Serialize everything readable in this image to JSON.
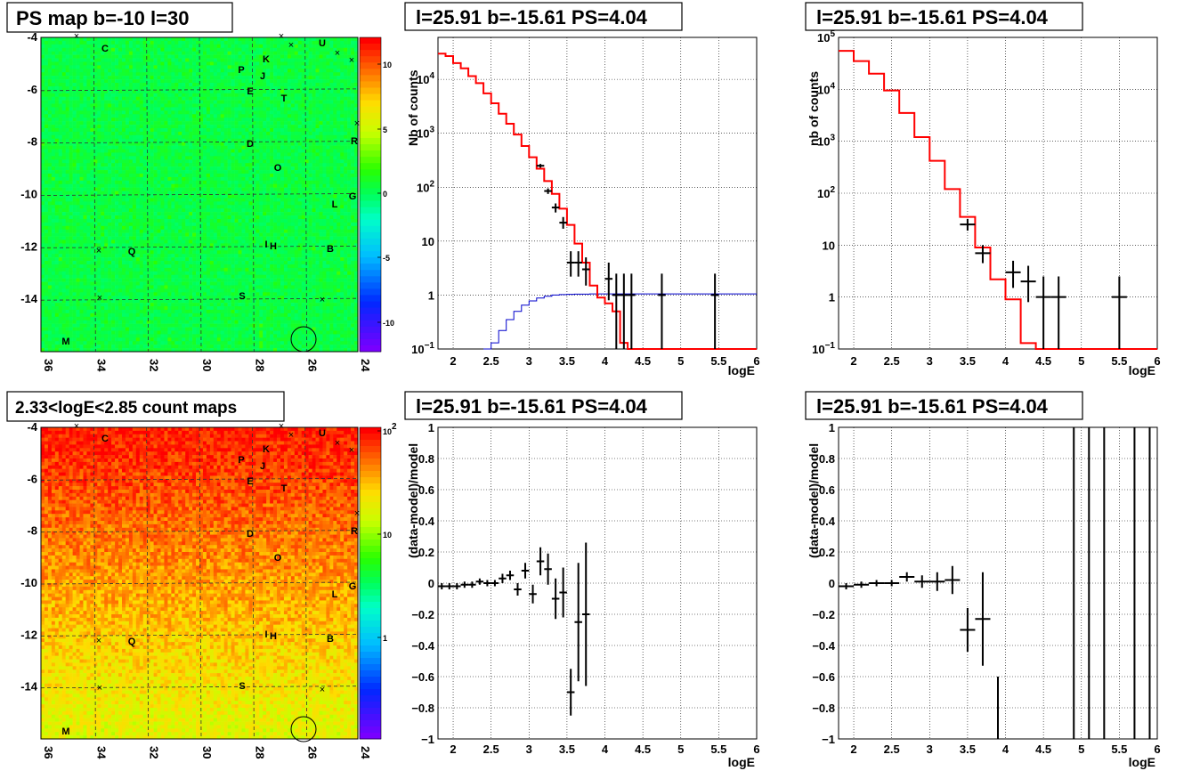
{
  "map_labels": [
    "C",
    "K",
    "P",
    "J",
    "E",
    "U",
    "T",
    "D",
    "R",
    "O",
    "G",
    "L",
    "I",
    "H",
    "B",
    "Q",
    "S",
    "M"
  ],
  "chart_data": [
    {
      "type": "heatmap",
      "title": "PS map b=-10 l=30",
      "x_ticks": [
        "36",
        "34",
        "32",
        "30",
        "28",
        "26",
        "24"
      ],
      "y_ticks": [
        "-4",
        "-6",
        "-8",
        "-10",
        "-12",
        "-14"
      ],
      "colorbar_ticks": [
        "10",
        "5",
        "0",
        "-5",
        "-10"
      ],
      "xlim": [
        36,
        24
      ],
      "ylim": [
        -16,
        -4
      ],
      "zlim": [
        -12,
        12
      ],
      "grid": true,
      "colormap": "rainbow"
    },
    {
      "type": "line",
      "title": "l=25.91 b=-15.61 PS=4.04",
      "xlabel": "logE",
      "ylabel": "Nb of counts",
      "log_y": true,
      "xlim": [
        1.8,
        6
      ],
      "ylim": [
        0.1,
        60000
      ],
      "x_ticks": [
        "2",
        "2.5",
        "3",
        "3.5",
        "4",
        "4.5",
        "5",
        "5.5",
        "6"
      ],
      "y_ticks": [
        "10^4",
        "10^3",
        "10^2",
        "10",
        "1",
        "10^-1"
      ],
      "grid": true,
      "model_color": "#ff0000",
      "ps_color": "#0000cc",
      "bin_width": 0.1,
      "model": [
        [
          1.8,
          30000
        ],
        [
          1.9,
          27000
        ],
        [
          2.0,
          20000
        ],
        [
          2.1,
          16000
        ],
        [
          2.2,
          11500
        ],
        [
          2.3,
          8500
        ],
        [
          2.4,
          5500
        ],
        [
          2.5,
          3600
        ],
        [
          2.6,
          2300
        ],
        [
          2.7,
          1500
        ],
        [
          2.8,
          950
        ],
        [
          2.9,
          580
        ],
        [
          3.0,
          360
        ],
        [
          3.1,
          220
        ],
        [
          3.2,
          130
        ],
        [
          3.3,
          75
        ],
        [
          3.4,
          40
        ],
        [
          3.5,
          20
        ],
        [
          3.6,
          9
        ],
        [
          3.7,
          4
        ],
        [
          3.8,
          1.5
        ],
        [
          3.9,
          0.9
        ],
        [
          4.0,
          0.7
        ],
        [
          4.1,
          0.5
        ],
        [
          4.2,
          0.13
        ],
        [
          4.3,
          0.1
        ],
        [
          4.4,
          0.1
        ],
        [
          4.5,
          0.1
        ],
        [
          4.6,
          0.1
        ],
        [
          4.7,
          0.1
        ],
        [
          4.8,
          0.1
        ],
        [
          4.9,
          0.1
        ],
        [
          5.0,
          0.1
        ],
        [
          5.1,
          0.1
        ],
        [
          5.2,
          0.1
        ],
        [
          5.3,
          0.1
        ],
        [
          5.4,
          0.1
        ],
        [
          5.5,
          0.1
        ],
        [
          5.6,
          0.1
        ],
        [
          5.7,
          0.1
        ],
        [
          5.8,
          0.1
        ],
        [
          5.9,
          0.1
        ]
      ],
      "ps_model": [
        [
          2.4,
          0.1
        ],
        [
          2.5,
          0.13
        ],
        [
          2.6,
          0.22
        ],
        [
          2.7,
          0.35
        ],
        [
          2.8,
          0.5
        ],
        [
          2.9,
          0.65
        ],
        [
          3.0,
          0.78
        ],
        [
          3.1,
          0.88
        ],
        [
          3.2,
          0.95
        ],
        [
          3.3,
          1.0
        ],
        [
          3.4,
          1.02
        ],
        [
          3.5,
          1.03
        ],
        [
          3.6,
          1.04
        ],
        [
          3.7,
          1.04
        ],
        [
          3.8,
          1.05
        ],
        [
          3.9,
          1.05
        ],
        [
          4.0,
          1.05
        ],
        [
          4.1,
          1.05
        ],
        [
          4.2,
          1.05
        ],
        [
          4.3,
          1.05
        ],
        [
          4.4,
          1.05
        ],
        [
          4.5,
          1.05
        ],
        [
          4.6,
          1.05
        ],
        [
          4.7,
          1.05
        ],
        [
          4.8,
          1.05
        ],
        [
          4.9,
          1.05
        ],
        [
          5.0,
          1.05
        ],
        [
          5.1,
          1.05
        ],
        [
          5.2,
          1.05
        ],
        [
          5.3,
          1.05
        ],
        [
          5.4,
          1.05
        ],
        [
          5.5,
          1.05
        ],
        [
          5.6,
          1.05
        ],
        [
          5.7,
          1.05
        ],
        [
          5.8,
          1.05
        ],
        [
          5.9,
          1.05
        ]
      ],
      "data_points": [
        {
          "x": 3.15,
          "y": 250,
          "lo": 230,
          "hi": 270
        },
        {
          "x": 3.25,
          "y": 85,
          "lo": 75,
          "hi": 95
        },
        {
          "x": 3.35,
          "y": 42,
          "lo": 34,
          "hi": 50
        },
        {
          "x": 3.45,
          "y": 22,
          "lo": 17,
          "hi": 28
        },
        {
          "x": 3.55,
          "y": 4,
          "lo": 2.2,
          "hi": 6.5
        },
        {
          "x": 3.65,
          "y": 4,
          "lo": 2.2,
          "hi": 6.5
        },
        {
          "x": 3.75,
          "y": 3,
          "lo": 1.5,
          "hi": 5
        },
        {
          "x": 4.05,
          "y": 2,
          "lo": 0.8,
          "hi": 4
        },
        {
          "x": 4.15,
          "y": 1,
          "lo": 0.1,
          "hi": 2.5
        },
        {
          "x": 4.25,
          "y": 1,
          "lo": 0.1,
          "hi": 2.5
        },
        {
          "x": 4.35,
          "y": 1,
          "lo": 0.1,
          "hi": 2.5
        },
        {
          "x": 4.75,
          "y": 1,
          "lo": 0.1,
          "hi": 2.5
        },
        {
          "x": 5.45,
          "y": 1,
          "lo": 0.1,
          "hi": 2.5
        }
      ]
    },
    {
      "type": "line",
      "title": "l=25.91 b=-15.61 PS=4.04",
      "xlabel": "logE",
      "ylabel": "nb of counts",
      "log_y": true,
      "xlim": [
        1.8,
        6
      ],
      "ylim": [
        0.1,
        100000
      ],
      "x_ticks": [
        "2",
        "2.5",
        "3",
        "3.5",
        "4",
        "4.5",
        "5",
        "5.5",
        "6"
      ],
      "y_ticks": [
        "10^5",
        "10^4",
        "10^3",
        "10^2",
        "10",
        "1",
        "10^-1"
      ],
      "grid": true,
      "model_color": "#ff0000",
      "bin_width": 0.2,
      "model": [
        [
          1.8,
          55000
        ],
        [
          2.0,
          35000
        ],
        [
          2.2,
          20000
        ],
        [
          2.4,
          9500
        ],
        [
          2.6,
          3500
        ],
        [
          2.8,
          1200
        ],
        [
          3.0,
          420
        ],
        [
          3.2,
          120
        ],
        [
          3.4,
          35
        ],
        [
          3.6,
          9
        ],
        [
          3.8,
          2.2
        ],
        [
          4.0,
          0.9
        ],
        [
          4.2,
          0.13
        ],
        [
          4.4,
          0.1
        ],
        [
          4.6,
          0.1
        ],
        [
          4.8,
          0.1
        ],
        [
          5.0,
          0.1
        ],
        [
          5.2,
          0.1
        ],
        [
          5.4,
          0.1
        ],
        [
          5.6,
          0.1
        ],
        [
          5.8,
          0.1
        ]
      ],
      "data_points": [
        {
          "x": 3.5,
          "y": 25,
          "lo": 19,
          "hi": 32
        },
        {
          "x": 3.7,
          "y": 7,
          "lo": 4.5,
          "hi": 10
        },
        {
          "x": 4.1,
          "y": 3,
          "lo": 1.5,
          "hi": 5
        },
        {
          "x": 4.3,
          "y": 2,
          "lo": 0.8,
          "hi": 4
        },
        {
          "x": 4.5,
          "y": 1,
          "lo": 0.1,
          "hi": 2.5
        },
        {
          "x": 4.7,
          "y": 1,
          "lo": 0.1,
          "hi": 2.5
        },
        {
          "x": 5.5,
          "y": 1,
          "lo": 0.1,
          "hi": 2.5
        }
      ]
    },
    {
      "type": "heatmap",
      "title": "2.33<logE<2.85 count maps",
      "x_ticks": [
        "36",
        "34",
        "32",
        "30",
        "28",
        "26",
        "24"
      ],
      "y_ticks": [
        "-4",
        "-6",
        "-8",
        "-10",
        "-12",
        "-14"
      ],
      "colorbar_ticks": [
        "10^2",
        "10",
        "1"
      ],
      "xlim": [
        36,
        24
      ],
      "ylim": [
        -16,
        -4
      ],
      "grid": true,
      "colormap": "rainbow-log"
    },
    {
      "type": "scatter",
      "title": "l=25.91 b=-15.61 PS=4.04",
      "xlabel": "logE",
      "ylabel": "(data-model)/model",
      "xlim": [
        1.8,
        6
      ],
      "ylim": [
        -1,
        1
      ],
      "x_ticks": [
        "2",
        "2.5",
        "3",
        "3.5",
        "4",
        "4.5",
        "5",
        "5.5",
        "6"
      ],
      "y_ticks": [
        "1",
        "0.8",
        "0.6",
        "0.4",
        "0.2",
        "0",
        "−0.2",
        "−0.4",
        "−0.6",
        "−0.8",
        "−1"
      ],
      "grid": true,
      "data_points": [
        {
          "x": 1.85,
          "y": -0.02,
          "err": 0.02
        },
        {
          "x": 1.95,
          "y": -0.02,
          "err": 0.02
        },
        {
          "x": 2.05,
          "y": -0.02,
          "err": 0.02
        },
        {
          "x": 2.15,
          "y": -0.01,
          "err": 0.02
        },
        {
          "x": 2.25,
          "y": -0.01,
          "err": 0.02
        },
        {
          "x": 2.35,
          "y": 0.01,
          "err": 0.02
        },
        {
          "x": 2.45,
          "y": 0.0,
          "err": 0.02
        },
        {
          "x": 2.55,
          "y": 0.0,
          "err": 0.02
        },
        {
          "x": 2.65,
          "y": 0.03,
          "err": 0.03
        },
        {
          "x": 2.75,
          "y": 0.05,
          "err": 0.03
        },
        {
          "x": 2.85,
          "y": -0.04,
          "err": 0.04
        },
        {
          "x": 2.95,
          "y": 0.08,
          "err": 0.05
        },
        {
          "x": 3.05,
          "y": -0.07,
          "err": 0.06
        },
        {
          "x": 3.15,
          "y": 0.14,
          "err": 0.09
        },
        {
          "x": 3.25,
          "y": 0.09,
          "err": 0.1
        },
        {
          "x": 3.35,
          "y": -0.1,
          "err": 0.13
        },
        {
          "x": 3.45,
          "y": -0.06,
          "err": 0.16
        },
        {
          "x": 3.55,
          "y": -0.7,
          "err": 0.15
        },
        {
          "x": 3.65,
          "y": -0.25,
          "err": 0.38
        },
        {
          "x": 3.75,
          "y": -0.2,
          "err": 0.46
        }
      ]
    },
    {
      "type": "scatter",
      "title": "l=25.91 b=-15.61 PS=4.04",
      "xlabel": "logE",
      "ylabel": "(data-model)/model",
      "xlim": [
        1.8,
        6
      ],
      "ylim": [
        -1,
        1
      ],
      "x_ticks": [
        "2",
        "2.5",
        "3",
        "3.5",
        "4",
        "4.5",
        "5",
        "5.5",
        "6"
      ],
      "y_ticks": [
        "1",
        "0.8",
        "0.6",
        "0.4",
        "0.2",
        "0",
        "−0.2",
        "−0.4",
        "−0.6",
        "−0.8",
        "−1"
      ],
      "grid": true,
      "data_points": [
        {
          "x": 1.9,
          "y": -0.02,
          "err": 0.02
        },
        {
          "x": 2.1,
          "y": -0.01,
          "err": 0.02
        },
        {
          "x": 2.3,
          "y": 0.0,
          "err": 0.02
        },
        {
          "x": 2.5,
          "y": 0.0,
          "err": 0.02
        },
        {
          "x": 2.7,
          "y": 0.04,
          "err": 0.03
        },
        {
          "x": 2.9,
          "y": 0.01,
          "err": 0.04
        },
        {
          "x": 3.1,
          "y": 0.01,
          "err": 0.06
        },
        {
          "x": 3.3,
          "y": 0.02,
          "err": 0.09
        },
        {
          "x": 3.5,
          "y": -0.3,
          "err": 0.14
        },
        {
          "x": 3.7,
          "y": -0.23,
          "err": 0.3
        }
      ],
      "vertical_bars": [
        {
          "x": 3.9,
          "from": -1,
          "to": -0.6
        },
        {
          "x": 4.9,
          "from": -1,
          "to": 1
        },
        {
          "x": 5.1,
          "from": -1,
          "to": 1
        },
        {
          "x": 5.3,
          "from": -1,
          "to": 1
        },
        {
          "x": 5.7,
          "from": -1,
          "to": 1
        },
        {
          "x": 5.9,
          "from": -1,
          "to": 1
        }
      ]
    }
  ]
}
